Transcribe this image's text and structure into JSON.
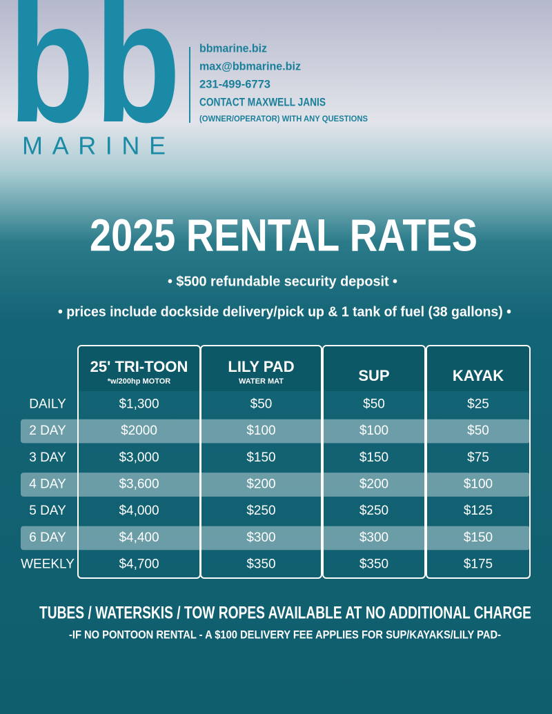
{
  "logo": {
    "mark": "bb",
    "word": "MARINE"
  },
  "contact": [
    "bbmarine.biz",
    "max@bbmarine.biz",
    "231-499-6773",
    "CONTACT MAXWELL JANIS",
    "(OWNER/OPERATOR) WITH ANY QUESTIONS"
  ],
  "title": "2025 RENTAL RATES",
  "notes": [
    "• $500 refundable security deposit •",
    "• prices include dockside delivery/pick up & 1 tank of fuel (38 gallons) •"
  ],
  "table": {
    "headers": [
      {
        "name": "25' TRI-TOON",
        "sub": "*w/200hp MOTOR"
      },
      {
        "name": "LILY PAD",
        "sub": "WATER MAT"
      },
      {
        "name": "SUP"
      },
      {
        "name": "KAYAK"
      }
    ],
    "rows": [
      {
        "label": "DAILY",
        "values": [
          "$1,300",
          "$50",
          "$50",
          "$25"
        ]
      },
      {
        "label": "2 DAY",
        "values": [
          "$2000",
          "$100",
          "$100",
          "$50"
        ]
      },
      {
        "label": "3 DAY",
        "values": [
          "$3,000",
          "$150",
          "$150",
          "$75"
        ]
      },
      {
        "label": "4 DAY",
        "values": [
          "$3,600",
          "$200",
          "$200",
          "$100"
        ]
      },
      {
        "label": "5 DAY",
        "values": [
          "$4,000",
          "$250",
          "$250",
          "$125"
        ]
      },
      {
        "label": "6 DAY",
        "values": [
          "$4,400",
          "$300",
          "$300",
          "$150"
        ]
      },
      {
        "label": "WEEKLY",
        "values": [
          "$4,700",
          "$350",
          "$350",
          "$175"
        ]
      }
    ]
  },
  "footer": [
    "TUBES / WATERSKIS / TOW ROPES AVAILABLE AT NO ADDITIONAL CHARGE",
    "-IF NO PONTOON RENTAL - A $100 DELIVERY FEE APPLIES FOR SUP/KAYAKS/LILY PAD-"
  ]
}
